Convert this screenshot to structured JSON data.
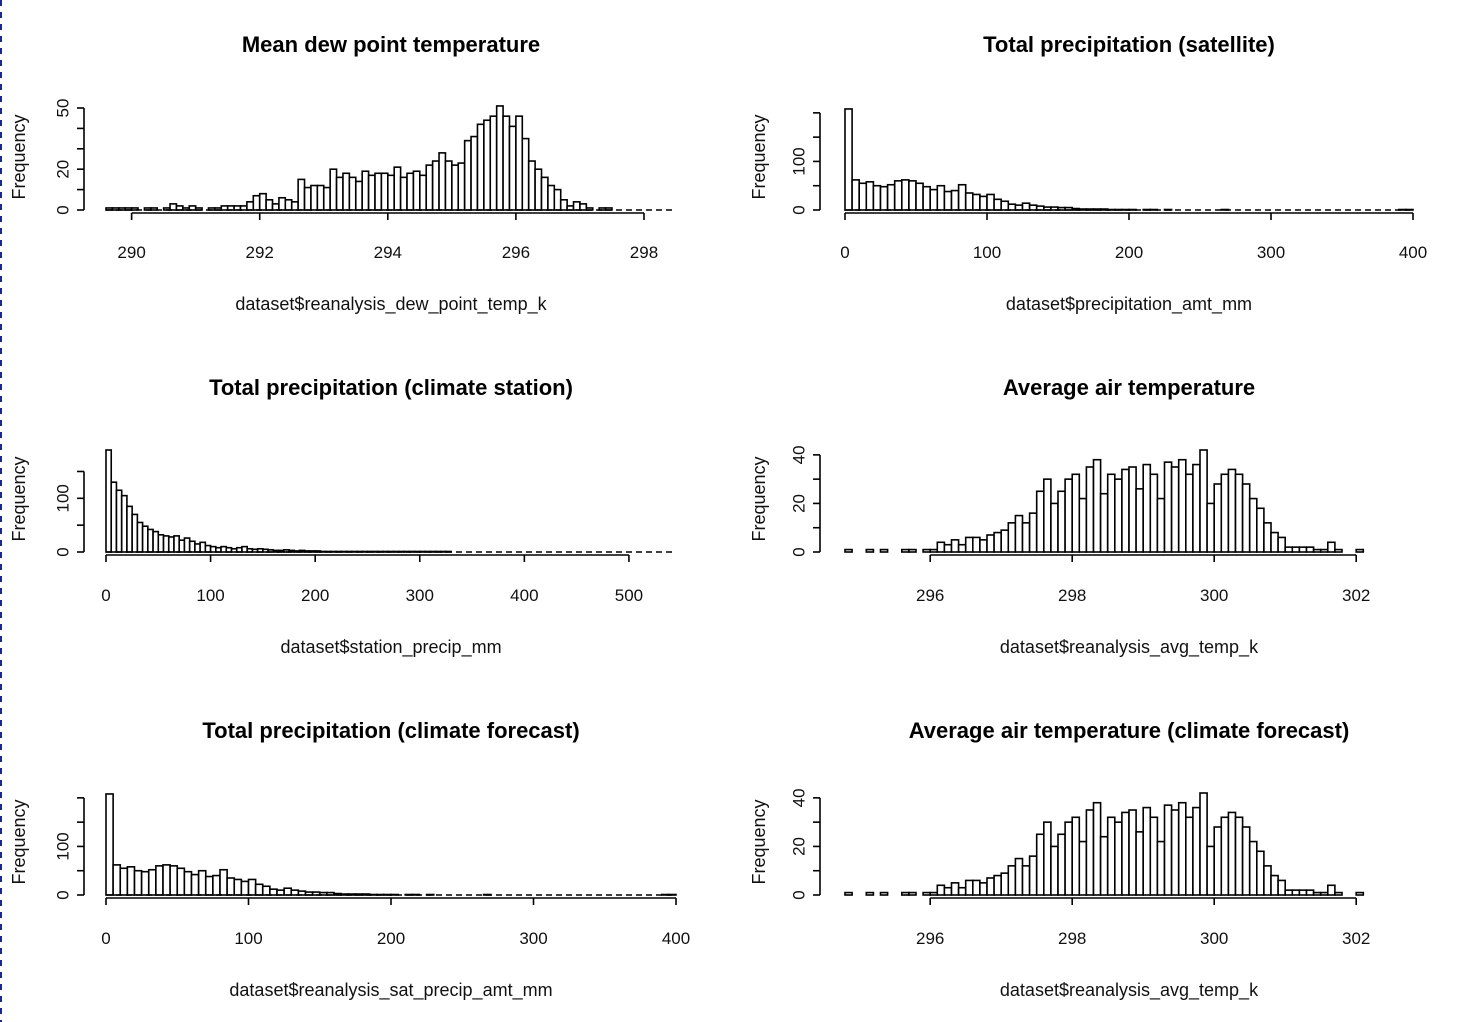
{
  "chart_data": [
    {
      "type": "bar",
      "title": "Mean dew point temperature",
      "xlabel": "dataset$reanalysis_dew_point_temp_k",
      "ylabel": "Frequency",
      "xlim": [
        289.6,
        298.5
      ],
      "ylim": [
        0,
        50
      ],
      "xticks": [
        290,
        292,
        294,
        296,
        298
      ],
      "yticks": [
        0,
        20,
        50
      ],
      "ytick_minor": [
        10,
        30,
        40
      ],
      "bin_start": 289.6,
      "bin_width": 0.1,
      "values": [
        1,
        1,
        1,
        1,
        1,
        0,
        1,
        1,
        0,
        1,
        3,
        2,
        1,
        2,
        1,
        0,
        1,
        1,
        2,
        2,
        2,
        2,
        4,
        7,
        8,
        5,
        3,
        6,
        5,
        4,
        15,
        11,
        12,
        12,
        11,
        20,
        16,
        18,
        16,
        14,
        19,
        17,
        18,
        18,
        17,
        21,
        16,
        18,
        19,
        17,
        22,
        24,
        28,
        24,
        22,
        23,
        34,
        36,
        42,
        44,
        46,
        51,
        46,
        41,
        46,
        35,
        24,
        20,
        16,
        12,
        10,
        5,
        2,
        4,
        3,
        1,
        0,
        1,
        1
      ],
      "dashed_baseline": true
    },
    {
      "type": "bar",
      "title": "Total precipitation (satellite)",
      "xlabel": "dataset$precipitation_amt_mm",
      "ylabel": "Frequency",
      "xlim": [
        0,
        400
      ],
      "ylim": [
        0,
        210
      ],
      "xticks": [
        0,
        100,
        200,
        300,
        400
      ],
      "yticks": [
        0,
        100
      ],
      "ytick_minor": [
        50,
        150,
        200
      ],
      "bin_start": 0,
      "bin_width": 5,
      "values": [
        208,
        62,
        55,
        58,
        50,
        48,
        52,
        60,
        62,
        60,
        55,
        48,
        42,
        50,
        38,
        40,
        52,
        35,
        32,
        28,
        32,
        22,
        18,
        12,
        10,
        14,
        10,
        8,
        6,
        6,
        5,
        5,
        3,
        2,
        2,
        2,
        2,
        1,
        1,
        1,
        1,
        0,
        1,
        1,
        0,
        1,
        0,
        0,
        0,
        0,
        0,
        0,
        0,
        1,
        0,
        0,
        0,
        0,
        0,
        0,
        0,
        0,
        0,
        0,
        0,
        0,
        0,
        0,
        0,
        0,
        0,
        0,
        0,
        0,
        0,
        0,
        0,
        0,
        1,
        1
      ],
      "dashed_baseline": true
    },
    {
      "type": "bar",
      "title": "Total precipitation (climate station)",
      "xlabel": "dataset$station_precip_mm",
      "ylabel": "Frequency",
      "xlim": [
        0,
        545
      ],
      "ylim": [
        0,
        190
      ],
      "xticks": [
        0,
        100,
        200,
        300,
        400,
        500
      ],
      "yticks": [
        0,
        100
      ],
      "ytick_minor": [
        50,
        150
      ],
      "bin_start": 0,
      "bin_width": 5,
      "values": [
        190,
        130,
        115,
        105,
        85,
        70,
        55,
        48,
        42,
        38,
        32,
        30,
        28,
        30,
        22,
        26,
        20,
        15,
        18,
        12,
        10,
        8,
        10,
        8,
        6,
        8,
        10,
        6,
        5,
        6,
        5,
        4,
        3,
        3,
        4,
        3,
        2,
        3,
        2,
        2,
        2,
        1,
        1,
        1,
        1,
        1,
        1,
        1,
        1,
        1,
        1,
        1,
        1,
        1,
        1,
        1,
        1,
        1,
        1,
        1,
        1,
        1,
        1,
        1,
        1,
        1,
        0,
        0,
        0,
        0,
        0,
        0,
        0,
        0,
        0,
        0,
        0,
        0,
        0,
        0,
        0,
        0,
        0,
        0,
        0,
        0,
        0,
        0,
        0,
        0,
        0,
        0,
        0,
        0,
        0,
        0,
        0,
        0,
        0,
        0,
        0,
        0,
        0,
        0,
        0,
        0,
        0,
        0,
        0
      ],
      "dashed_baseline": true
    },
    {
      "type": "bar",
      "title": "Average air temperature",
      "xlabel": "dataset$reanalysis_avg_temp_k",
      "ylabel": "Frequency",
      "xlim": [
        294.8,
        302.8
      ],
      "ylim": [
        0,
        42
      ],
      "xticks": [
        296,
        298,
        300,
        302
      ],
      "yticks": [
        0,
        20,
        40
      ],
      "ytick_minor": [
        10,
        30
      ],
      "bin_start": 294.8,
      "bin_width": 0.1,
      "values": [
        1,
        0,
        0,
        1,
        0,
        1,
        0,
        0,
        1,
        1,
        0,
        1,
        1,
        4,
        3,
        5,
        3,
        6,
        6,
        5,
        7,
        8,
        9,
        12,
        15,
        12,
        16,
        25,
        30,
        20,
        25,
        30,
        32,
        22,
        35,
        38,
        24,
        32,
        30,
        34,
        35,
        26,
        36,
        32,
        22,
        37,
        35,
        38,
        32,
        36,
        42,
        20,
        28,
        32,
        34,
        32,
        28,
        22,
        18,
        12,
        8,
        6,
        2,
        2,
        2,
        2,
        1,
        1,
        4,
        1,
        0,
        0,
        1
      ]
    },
    {
      "type": "bar",
      "title": "Total precipitation (climate forecast)",
      "xlabel": "dataset$reanalysis_sat_precip_amt_mm",
      "ylabel": "Frequency",
      "xlim": [
        0,
        400
      ],
      "ylim": [
        0,
        210
      ],
      "xticks": [
        0,
        100,
        200,
        300,
        400
      ],
      "yticks": [
        0,
        100
      ],
      "ytick_minor": [
        50,
        150,
        200
      ],
      "bin_start": 0,
      "bin_width": 5,
      "values": [
        208,
        62,
        55,
        58,
        50,
        48,
        52,
        60,
        62,
        60,
        55,
        48,
        42,
        50,
        38,
        40,
        52,
        35,
        32,
        28,
        32,
        22,
        18,
        12,
        10,
        14,
        10,
        8,
        6,
        6,
        5,
        5,
        3,
        2,
        2,
        2,
        2,
        1,
        1,
        1,
        1,
        0,
        1,
        1,
        0,
        1,
        0,
        0,
        0,
        0,
        0,
        0,
        0,
        1,
        0,
        0,
        0,
        0,
        0,
        0,
        0,
        0,
        0,
        0,
        0,
        0,
        0,
        0,
        0,
        0,
        0,
        0,
        0,
        0,
        0,
        0,
        0,
        0,
        1,
        1
      ],
      "dashed_baseline": true
    },
    {
      "type": "bar",
      "title": "Average air temperature (climate forecast)",
      "xlabel": "dataset$reanalysis_avg_temp_k",
      "ylabel": "Frequency",
      "xlim": [
        294.8,
        302.8
      ],
      "ylim": [
        0,
        42
      ],
      "xticks": [
        296,
        298,
        300,
        302
      ],
      "yticks": [
        0,
        20,
        40
      ],
      "ytick_minor": [
        10,
        30
      ],
      "bin_start": 294.8,
      "bin_width": 0.1,
      "values": [
        1,
        0,
        0,
        1,
        0,
        1,
        0,
        0,
        1,
        1,
        0,
        1,
        1,
        4,
        3,
        5,
        3,
        6,
        6,
        5,
        7,
        8,
        9,
        12,
        15,
        12,
        16,
        25,
        30,
        20,
        25,
        30,
        32,
        22,
        35,
        38,
        24,
        32,
        30,
        34,
        35,
        26,
        36,
        32,
        22,
        37,
        35,
        38,
        32,
        36,
        42,
        20,
        28,
        32,
        34,
        32,
        28,
        22,
        18,
        12,
        8,
        6,
        2,
        2,
        2,
        2,
        1,
        1,
        4,
        1,
        0,
        0,
        1
      ]
    }
  ]
}
